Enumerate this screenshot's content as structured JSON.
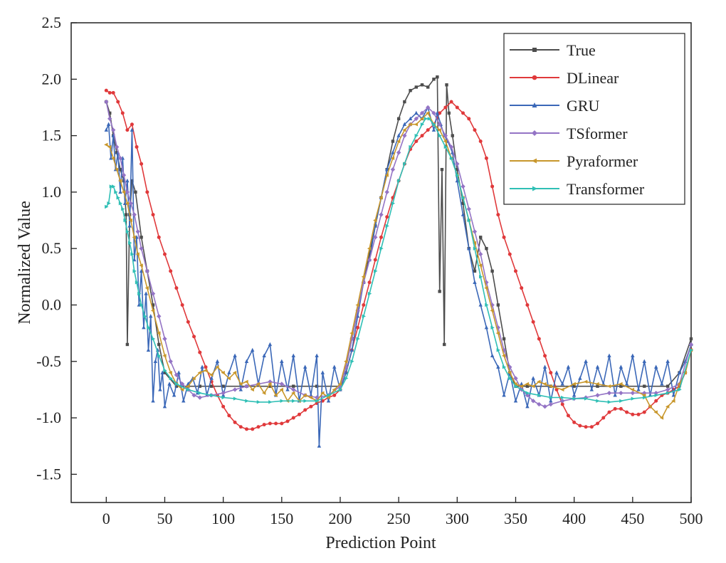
{
  "chart_data": {
    "type": "line",
    "xlabel": "Prediction Point",
    "ylabel": "Normalized Value",
    "xlim": [
      -30,
      500
    ],
    "ylim": [
      -1.75,
      2.5
    ],
    "xticks": [
      0,
      50,
      100,
      150,
      200,
      250,
      300,
      350,
      400,
      450,
      500
    ],
    "yticks": [
      -1.5,
      -1.0,
      -0.5,
      0.0,
      0.5,
      1.0,
      1.5,
      2.0,
      2.5
    ],
    "xtick_labels": [
      "0",
      "50",
      "100",
      "150",
      "200",
      "250",
      "300",
      "350",
      "400",
      "450",
      "500"
    ],
    "ytick_labels": [
      "-1.5",
      "-1.0",
      "-0.5",
      "0.0",
      "0.5",
      "1.0",
      "1.5",
      "2.0",
      "2.5"
    ],
    "grid": false,
    "legend_position": "top-right",
    "series": [
      {
        "name": "True",
        "color": "#4d4d4d",
        "marker": "square",
        "x": [
          0,
          3,
          6,
          9,
          12,
          15,
          17,
          18,
          20,
          22,
          25,
          30,
          35,
          40,
          45,
          50,
          60,
          70,
          80,
          90,
          100,
          120,
          140,
          160,
          180,
          200,
          205,
          210,
          215,
          220,
          225,
          230,
          235,
          240,
          245,
          250,
          255,
          260,
          265,
          270,
          275,
          280,
          283,
          285,
          287,
          289,
          291,
          293,
          296,
          300,
          305,
          310,
          315,
          320,
          325,
          330,
          335,
          340,
          345,
          350,
          360,
          380,
          400,
          420,
          440,
          460,
          480,
          490,
          500
        ],
        "y": [
          1.8,
          1.7,
          1.5,
          1.35,
          1.2,
          1.1,
          0.8,
          -0.35,
          0.8,
          1.1,
          1.0,
          0.6,
          0.3,
          0.0,
          -0.35,
          -0.6,
          -0.72,
          -0.72,
          -0.72,
          -0.72,
          -0.72,
          -0.72,
          -0.72,
          -0.72,
          -0.72,
          -0.72,
          -0.55,
          -0.3,
          -0.05,
          0.2,
          0.45,
          0.7,
          0.95,
          1.2,
          1.45,
          1.65,
          1.8,
          1.9,
          1.93,
          1.95,
          1.93,
          2.0,
          2.02,
          0.12,
          1.2,
          -0.35,
          1.95,
          1.7,
          1.5,
          1.2,
          0.9,
          0.5,
          0.3,
          0.6,
          0.5,
          0.3,
          0.0,
          -0.3,
          -0.6,
          -0.72,
          -0.72,
          -0.72,
          -0.72,
          -0.72,
          -0.72,
          -0.72,
          -0.72,
          -0.6,
          -0.3
        ]
      },
      {
        "name": "DLinear",
        "color": "#e0393b",
        "marker": "circle",
        "x": [
          0,
          3,
          6,
          10,
          14,
          18,
          22,
          26,
          30,
          35,
          40,
          45,
          50,
          55,
          60,
          65,
          70,
          75,
          80,
          85,
          90,
          95,
          100,
          105,
          110,
          115,
          120,
          125,
          130,
          135,
          140,
          145,
          150,
          155,
          160,
          165,
          170,
          175,
          180,
          185,
          190,
          195,
          200,
          205,
          210,
          215,
          220,
          225,
          230,
          235,
          240,
          245,
          250,
          255,
          260,
          265,
          270,
          275,
          280,
          285,
          290,
          295,
          300,
          305,
          310,
          315,
          320,
          325,
          330,
          335,
          340,
          345,
          350,
          355,
          360,
          365,
          370,
          375,
          380,
          385,
          390,
          395,
          400,
          405,
          410,
          415,
          420,
          425,
          430,
          435,
          440,
          445,
          450,
          455,
          460,
          465,
          470,
          475,
          480,
          485,
          490,
          495,
          500
        ],
        "y": [
          1.9,
          1.88,
          1.88,
          1.8,
          1.7,
          1.55,
          1.6,
          1.4,
          1.25,
          1.0,
          0.8,
          0.6,
          0.45,
          0.3,
          0.15,
          0.0,
          -0.15,
          -0.28,
          -0.42,
          -0.55,
          -0.68,
          -0.8,
          -0.9,
          -0.98,
          -1.04,
          -1.08,
          -1.1,
          -1.1,
          -1.08,
          -1.06,
          -1.05,
          -1.05,
          -1.05,
          -1.03,
          -1.0,
          -0.97,
          -0.93,
          -0.9,
          -0.87,
          -0.85,
          -0.82,
          -0.8,
          -0.75,
          -0.6,
          -0.4,
          -0.2,
          0.0,
          0.2,
          0.4,
          0.6,
          0.78,
          0.95,
          1.1,
          1.25,
          1.38,
          1.45,
          1.5,
          1.55,
          1.6,
          1.7,
          1.75,
          1.8,
          1.75,
          1.7,
          1.65,
          1.55,
          1.45,
          1.3,
          1.05,
          0.8,
          0.6,
          0.45,
          0.3,
          0.15,
          0.0,
          -0.15,
          -0.3,
          -0.45,
          -0.6,
          -0.75,
          -0.88,
          -0.98,
          -1.04,
          -1.07,
          -1.08,
          -1.08,
          -1.05,
          -1.0,
          -0.95,
          -0.92,
          -0.92,
          -0.95,
          -0.97,
          -0.97,
          -0.95,
          -0.9,
          -0.85,
          -0.8,
          -0.78,
          -0.75,
          -0.72,
          -0.6,
          -0.4
        ]
      },
      {
        "name": "GRU",
        "color": "#3b68b8",
        "marker": "triangle-up",
        "x": [
          0,
          2,
          4,
          6,
          8,
          10,
          12,
          14,
          16,
          18,
          20,
          22,
          24,
          26,
          28,
          30,
          32,
          34,
          36,
          38,
          40,
          42,
          44,
          46,
          48,
          50,
          54,
          58,
          62,
          66,
          70,
          74,
          78,
          82,
          86,
          90,
          95,
          100,
          105,
          110,
          115,
          120,
          125,
          130,
          135,
          140,
          145,
          150,
          155,
          160,
          165,
          170,
          175,
          180,
          182,
          185,
          190,
          195,
          200,
          205,
          210,
          215,
          220,
          225,
          230,
          235,
          240,
          245,
          250,
          255,
          260,
          265,
          270,
          275,
          280,
          283,
          286,
          289,
          292,
          296,
          300,
          305,
          310,
          315,
          320,
          325,
          330,
          335,
          340,
          345,
          350,
          355,
          360,
          365,
          370,
          375,
          380,
          385,
          390,
          395,
          400,
          405,
          410,
          415,
          420,
          425,
          430,
          435,
          440,
          445,
          450,
          455,
          460,
          465,
          470,
          475,
          480,
          485,
          490,
          495,
          500
        ],
        "y": [
          1.55,
          1.6,
          1.3,
          1.5,
          1.2,
          1.35,
          1.0,
          1.3,
          0.9,
          1.1,
          0.7,
          1.55,
          0.4,
          0.6,
          0.0,
          0.3,
          -0.2,
          0.1,
          -0.4,
          -0.1,
          -0.85,
          -0.5,
          -0.4,
          -0.75,
          -0.6,
          -0.9,
          -0.7,
          -0.8,
          -0.6,
          -0.85,
          -0.7,
          -0.65,
          -0.78,
          -0.55,
          -0.8,
          -0.65,
          -0.5,
          -0.8,
          -0.6,
          -0.45,
          -0.75,
          -0.5,
          -0.4,
          -0.7,
          -0.45,
          -0.35,
          -0.8,
          -0.5,
          -0.75,
          -0.45,
          -0.85,
          -0.55,
          -0.8,
          -0.45,
          -1.25,
          -0.6,
          -0.85,
          -0.55,
          -0.75,
          -0.6,
          -0.4,
          -0.1,
          0.2,
          0.4,
          0.7,
          0.95,
          1.2,
          1.35,
          1.5,
          1.6,
          1.65,
          1.7,
          1.65,
          1.75,
          1.55,
          1.7,
          1.6,
          1.5,
          1.45,
          1.35,
          1.1,
          0.8,
          0.5,
          0.2,
          0.0,
          -0.2,
          -0.45,
          -0.55,
          -0.8,
          -0.6,
          -0.85,
          -0.7,
          -0.9,
          -0.65,
          -0.8,
          -0.55,
          -0.85,
          -0.6,
          -0.7,
          -0.55,
          -0.8,
          -0.65,
          -0.5,
          -0.75,
          -0.55,
          -0.7,
          -0.45,
          -0.8,
          -0.55,
          -0.7,
          -0.45,
          -0.75,
          -0.5,
          -0.8,
          -0.55,
          -0.7,
          -0.5,
          -0.8,
          -0.6,
          -0.5,
          -0.35
        ]
      },
      {
        "name": "TSformer",
        "color": "#9474c5",
        "marker": "diamond",
        "x": [
          0,
          3,
          6,
          9,
          12,
          15,
          18,
          21,
          24,
          27,
          30,
          35,
          40,
          45,
          50,
          55,
          60,
          65,
          70,
          75,
          80,
          90,
          100,
          110,
          120,
          130,
          140,
          150,
          160,
          170,
          180,
          190,
          200,
          205,
          210,
          215,
          220,
          225,
          230,
          235,
          240,
          245,
          250,
          255,
          260,
          265,
          270,
          275,
          280,
          285,
          290,
          295,
          300,
          305,
          310,
          315,
          320,
          325,
          330,
          335,
          340,
          345,
          350,
          355,
          360,
          365,
          370,
          375,
          380,
          390,
          400,
          410,
          420,
          430,
          440,
          450,
          460,
          470,
          480,
          490,
          500
        ],
        "y": [
          1.8,
          1.65,
          1.55,
          1.4,
          1.3,
          1.15,
          1.0,
          0.9,
          0.8,
          0.65,
          0.5,
          0.3,
          0.1,
          -0.1,
          -0.3,
          -0.5,
          -0.62,
          -0.7,
          -0.75,
          -0.8,
          -0.82,
          -0.8,
          -0.78,
          -0.75,
          -0.72,
          -0.7,
          -0.68,
          -0.7,
          -0.75,
          -0.8,
          -0.82,
          -0.8,
          -0.72,
          -0.55,
          -0.3,
          -0.05,
          0.2,
          0.4,
          0.6,
          0.8,
          1.0,
          1.2,
          1.35,
          1.5,
          1.6,
          1.65,
          1.7,
          1.75,
          1.7,
          1.6,
          1.5,
          1.4,
          1.25,
          1.05,
          0.85,
          0.65,
          0.45,
          0.2,
          0.0,
          -0.2,
          -0.4,
          -0.55,
          -0.65,
          -0.75,
          -0.8,
          -0.85,
          -0.88,
          -0.9,
          -0.88,
          -0.85,
          -0.83,
          -0.82,
          -0.8,
          -0.78,
          -0.78,
          -0.78,
          -0.78,
          -0.78,
          -0.75,
          -0.7,
          -0.35
        ]
      },
      {
        "name": "Pyraformer",
        "color": "#c8972c",
        "marker": "triangle-left",
        "x": [
          0,
          3,
          6,
          9,
          12,
          15,
          18,
          21,
          24,
          27,
          30,
          35,
          40,
          45,
          50,
          55,
          60,
          65,
          70,
          75,
          80,
          85,
          90,
          95,
          100,
          105,
          110,
          115,
          120,
          125,
          130,
          135,
          140,
          145,
          150,
          155,
          160,
          165,
          170,
          175,
          180,
          185,
          190,
          195,
          200,
          205,
          210,
          215,
          220,
          225,
          230,
          235,
          240,
          245,
          250,
          255,
          260,
          265,
          270,
          275,
          280,
          285,
          290,
          295,
          300,
          305,
          310,
          315,
          320,
          325,
          330,
          335,
          340,
          345,
          350,
          355,
          360,
          365,
          370,
          375,
          380,
          390,
          400,
          410,
          420,
          430,
          440,
          450,
          460,
          465,
          470,
          475,
          480,
          485,
          490,
          495,
          500
        ],
        "y": [
          1.42,
          1.4,
          1.3,
          1.2,
          1.1,
          1.0,
          0.9,
          0.75,
          0.6,
          0.45,
          0.35,
          0.15,
          -0.05,
          -0.25,
          -0.45,
          -0.6,
          -0.7,
          -0.75,
          -0.72,
          -0.65,
          -0.6,
          -0.58,
          -0.62,
          -0.55,
          -0.6,
          -0.65,
          -0.6,
          -0.7,
          -0.68,
          -0.75,
          -0.7,
          -0.78,
          -0.7,
          -0.8,
          -0.75,
          -0.85,
          -0.78,
          -0.85,
          -0.8,
          -0.82,
          -0.85,
          -0.78,
          -0.82,
          -0.75,
          -0.7,
          -0.5,
          -0.25,
          0.0,
          0.25,
          0.5,
          0.75,
          0.95,
          1.15,
          1.3,
          1.45,
          1.55,
          1.6,
          1.6,
          1.65,
          1.7,
          1.6,
          1.55,
          1.45,
          1.3,
          1.15,
          0.95,
          0.75,
          0.55,
          0.35,
          0.15,
          -0.05,
          -0.25,
          -0.45,
          -0.6,
          -0.7,
          -0.72,
          -0.7,
          -0.72,
          -0.68,
          -0.7,
          -0.72,
          -0.75,
          -0.7,
          -0.68,
          -0.7,
          -0.72,
          -0.7,
          -0.75,
          -0.8,
          -0.9,
          -0.95,
          -1.0,
          -0.9,
          -0.85,
          -0.7,
          -0.6,
          -0.4
        ]
      },
      {
        "name": "Transformer",
        "color": "#2fbfb5",
        "marker": "triangle-right",
        "x": [
          0,
          2,
          4,
          6,
          8,
          10,
          12,
          14,
          16,
          18,
          20,
          22,
          24,
          26,
          28,
          30,
          33,
          36,
          40,
          45,
          50,
          55,
          60,
          70,
          80,
          90,
          100,
          110,
          120,
          130,
          140,
          150,
          160,
          170,
          180,
          190,
          200,
          205,
          210,
          215,
          220,
          225,
          230,
          235,
          240,
          245,
          250,
          255,
          260,
          265,
          270,
          273,
          276,
          280,
          285,
          290,
          295,
          300,
          305,
          310,
          315,
          320,
          325,
          330,
          335,
          340,
          345,
          350,
          360,
          370,
          380,
          390,
          400,
          410,
          420,
          430,
          440,
          450,
          460,
          470,
          480,
          490,
          500
        ],
        "y": [
          0.87,
          0.9,
          1.05,
          1.05,
          1.0,
          0.95,
          0.9,
          0.85,
          0.75,
          0.65,
          0.55,
          0.45,
          0.3,
          0.2,
          0.1,
          0.0,
          -0.1,
          -0.2,
          -0.3,
          -0.45,
          -0.58,
          -0.65,
          -0.7,
          -0.75,
          -0.78,
          -0.8,
          -0.82,
          -0.83,
          -0.85,
          -0.86,
          -0.86,
          -0.85,
          -0.85,
          -0.85,
          -0.85,
          -0.8,
          -0.75,
          -0.65,
          -0.5,
          -0.3,
          -0.1,
          0.1,
          0.3,
          0.5,
          0.7,
          0.9,
          1.1,
          1.25,
          1.4,
          1.5,
          1.6,
          1.65,
          1.65,
          1.6,
          1.5,
          1.4,
          1.3,
          1.15,
          0.95,
          0.75,
          0.5,
          0.25,
          0.0,
          -0.2,
          -0.4,
          -0.55,
          -0.65,
          -0.72,
          -0.78,
          -0.8,
          -0.82,
          -0.82,
          -0.83,
          -0.83,
          -0.85,
          -0.86,
          -0.85,
          -0.83,
          -0.82,
          -0.8,
          -0.78,
          -0.75,
          -0.4
        ]
      }
    ]
  }
}
